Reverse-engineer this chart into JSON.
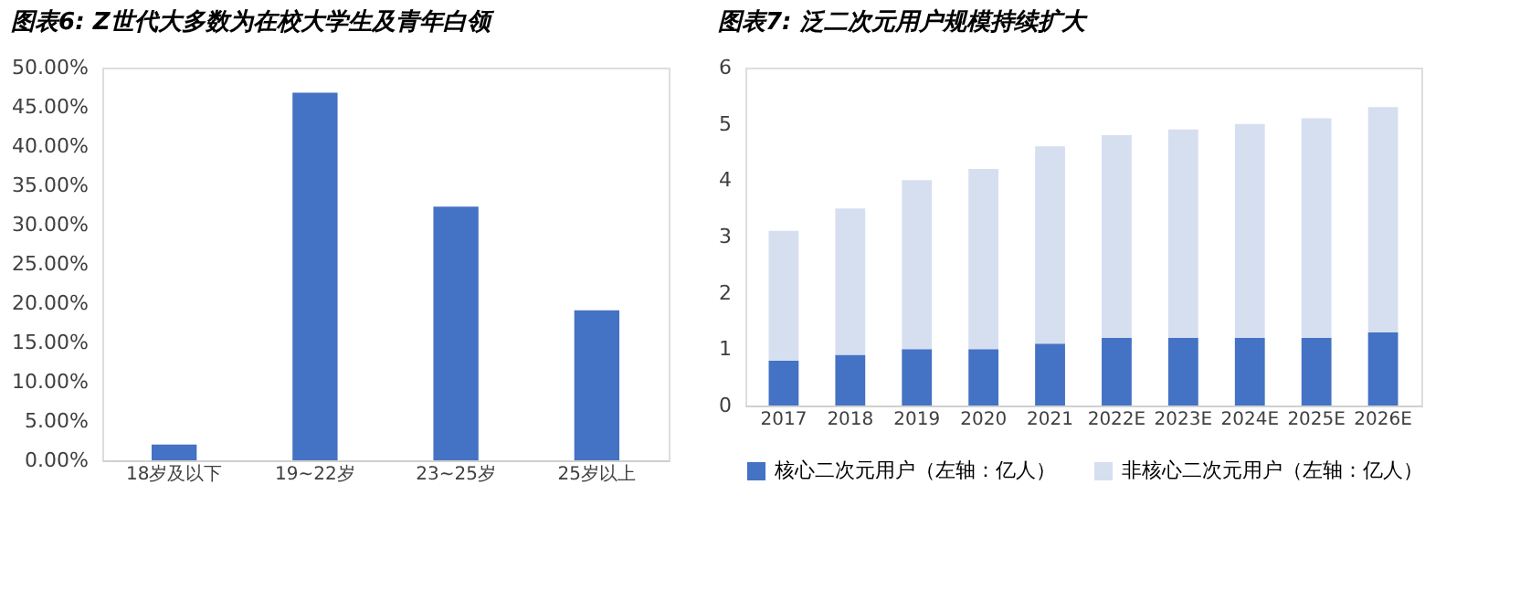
{
  "chart_data": [
    {
      "type": "bar",
      "title": "图表6: Z世代大多数为在校大学生及青年白领",
      "categories": [
        "18岁及以下",
        "19~22岁",
        "23~25岁",
        "25岁以上"
      ],
      "values": [
        2.0,
        46.8,
        32.3,
        19.1
      ],
      "color": "#4472c4",
      "ylim": [
        0,
        50
      ],
      "yticks": [
        {
          "value": 0,
          "label": "0.00%"
        },
        {
          "value": 5,
          "label": "5.00%"
        },
        {
          "value": 10,
          "label": "10.00%"
        },
        {
          "value": 15,
          "label": "15.00%"
        },
        {
          "value": 20,
          "label": "20.00%"
        },
        {
          "value": 25,
          "label": "25.00%"
        },
        {
          "value": 30,
          "label": "30.00%"
        },
        {
          "value": 35,
          "label": "35.00%"
        },
        {
          "value": 40,
          "label": "40.00%"
        },
        {
          "value": 45,
          "label": "45.00%"
        },
        {
          "value": 50,
          "label": "50.00%"
        }
      ],
      "grid": false,
      "legend": false
    },
    {
      "type": "bar",
      "title": "图表7: 泛二次元用户规模持续扩大",
      "categories": [
        "2017",
        "2018",
        "2019",
        "2020",
        "2021",
        "2022E",
        "2023E",
        "2024E",
        "2025E",
        "2026E"
      ],
      "stacked": true,
      "series": [
        {
          "name": "核心二次元用户（左轴：亿人）",
          "color": "#4472c4",
          "values": [
            0.8,
            0.9,
            1.0,
            1.0,
            1.1,
            1.2,
            1.2,
            1.2,
            1.2,
            1.3
          ]
        },
        {
          "name": "非核心二次元用户（左轴：亿人）",
          "color": "#d6dff0",
          "values": [
            2.3,
            2.6,
            3.0,
            3.2,
            3.5,
            3.6,
            3.7,
            3.8,
            3.9,
            4.0
          ]
        }
      ],
      "ylim": [
        0,
        6
      ],
      "yticks": [
        0,
        1,
        2,
        3,
        4,
        5,
        6
      ],
      "grid": false,
      "legend": "bottom"
    }
  ]
}
